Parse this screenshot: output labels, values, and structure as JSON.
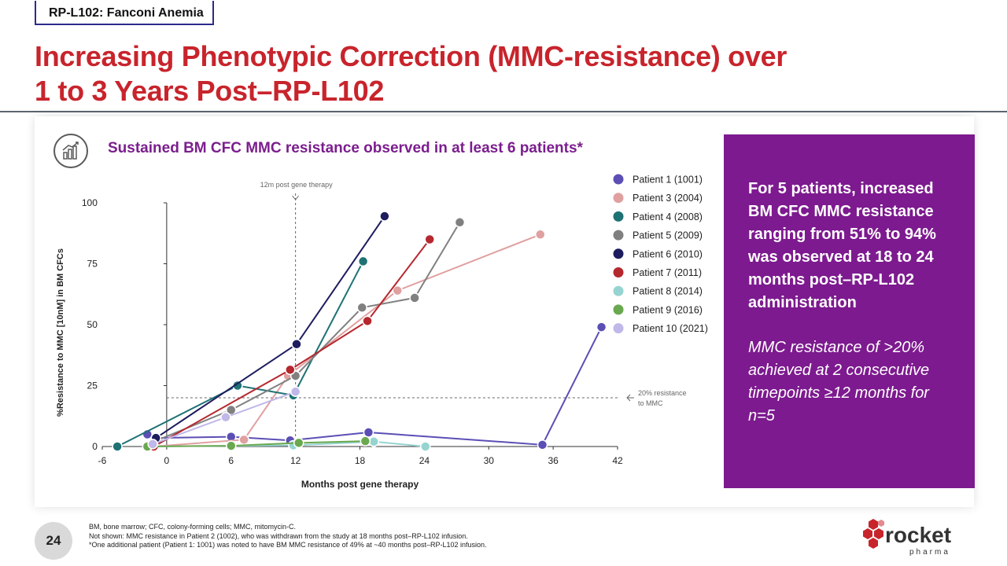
{
  "header": {
    "tag": "RP-L102: Fanconi Anemia",
    "title_line1": "Increasing Phenotypic Correction (MMC-resistance) over",
    "title_line2": "1 to 3 Years Post–RP-L102"
  },
  "panel": {
    "subtitle": "Sustained BM CFC MMC resistance observed in at least 6 patients*",
    "icon": "bar-chart-icon"
  },
  "callout": {
    "main": "For 5 patients, increased BM CFC MMC resistance ranging from 51% to 94% was observed at 18 to 24 months post–RP-L102 administration",
    "sub": "MMC resistance of >20% achieved at 2 consecutive timepoints ≥12 months for n=5",
    "color": "#7d1a8f"
  },
  "page_number": "24",
  "footnotes": [
    "BM, bone marrow; CFC, colony-forming cells; MMC, mitomycin-C.",
    "Not shown: MMC resistance in Patient 2 (1002), who was withdrawn from the study at 18 months post–RP-L102 infusion.",
    "*One additional patient (Patient 1: 1001) was noted to have BM MMC resistance of 49% at ~40 months post–RP-L102 infusion."
  ],
  "logo": {
    "name": "rocket",
    "sub": "pharma",
    "color": "#c8242c"
  },
  "chart_data": {
    "type": "line",
    "xlabel": "Months post gene therapy",
    "ylabel": "%Resistance to MMC [10nM] in BM CFCs",
    "xlim": [
      -6,
      42
    ],
    "ylim": [
      0,
      100
    ],
    "xticks": [
      -6,
      0,
      6,
      12,
      18,
      24,
      30,
      36,
      42
    ],
    "yticks": [
      0,
      25,
      50,
      75,
      100
    ],
    "grid": false,
    "legend_position": "right",
    "annotations": {
      "vline": {
        "x": 12,
        "label": "12m post gene therapy"
      },
      "hline": {
        "y": 20,
        "label_line1": "20% resistance",
        "label_line2": "to MMC"
      }
    },
    "series": [
      {
        "name": "Patient 1 (1001)",
        "color": "#5b4fb5",
        "points": [
          [
            -1.8,
            5
          ],
          [
            -1,
            3.5
          ],
          [
            6,
            4
          ],
          [
            11.5,
            2.5
          ],
          [
            18.8,
            5.8
          ],
          [
            35,
            0.7
          ],
          [
            40.5,
            49
          ]
        ]
      },
      {
        "name": "Patient 3 (2004)",
        "color": "#e0a0a0",
        "points": [
          [
            -1.3,
            0
          ],
          [
            7.2,
            2.8
          ],
          [
            11.3,
            29
          ],
          [
            21.5,
            64
          ],
          [
            34.8,
            87
          ]
        ]
      },
      {
        "name": "Patient 4 (2008)",
        "color": "#1e7274",
        "points": [
          [
            -4.6,
            0
          ],
          [
            6.6,
            25
          ],
          [
            11.8,
            21
          ],
          [
            18.3,
            76
          ]
        ]
      },
      {
        "name": "Patient 5 (2009)",
        "color": "#808080",
        "points": [
          [
            -1.2,
            2
          ],
          [
            6,
            15
          ],
          [
            12,
            29
          ],
          [
            18.2,
            57
          ],
          [
            23.1,
            61
          ],
          [
            27.3,
            92
          ]
        ]
      },
      {
        "name": "Patient 6 (2010)",
        "color": "#1c1c5e",
        "points": [
          [
            -1,
            3.5
          ],
          [
            12.1,
            42
          ],
          [
            20.3,
            94.5
          ]
        ]
      },
      {
        "name": "Patient 7 (2011)",
        "color": "#b5282e",
        "points": [
          [
            -1.2,
            0
          ],
          [
            11.5,
            31.5
          ],
          [
            18.7,
            51.5
          ],
          [
            24.5,
            85
          ]
        ]
      },
      {
        "name": "Patient 8 (2014)",
        "color": "#96d4d1",
        "points": [
          [
            -1.8,
            0
          ],
          [
            11.8,
            0.5
          ],
          [
            19.3,
            2
          ],
          [
            24.1,
            0
          ]
        ]
      },
      {
        "name": "Patient 9 (2016)",
        "color": "#6aa84f",
        "points": [
          [
            -1.8,
            0
          ],
          [
            6,
            0.3
          ],
          [
            12.3,
            1.5
          ],
          [
            18.5,
            2.2
          ]
        ]
      },
      {
        "name": "Patient 10 (2021)",
        "color": "#c0b8e8",
        "points": [
          [
            -1.3,
            1
          ],
          [
            5.5,
            12
          ],
          [
            12,
            22.5
          ]
        ]
      }
    ]
  }
}
